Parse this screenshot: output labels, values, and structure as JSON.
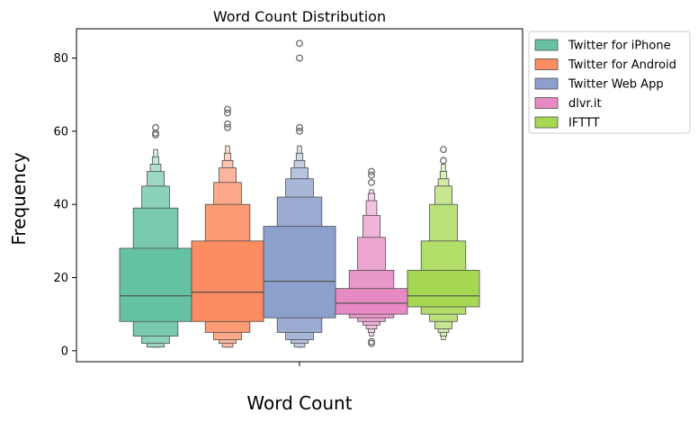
{
  "chart_data": {
    "type": "boxen",
    "title": "Word Count Distribution",
    "xlabel": "Word Count",
    "ylabel": "Frequency",
    "ylim": [
      -3,
      88
    ],
    "yticks": [
      0,
      20,
      40,
      60,
      80
    ],
    "grid": false,
    "legend_position": "outside-top-right",
    "series": [
      {
        "name": "Twitter for iPhone",
        "color": "#66c2a5",
        "median": 15,
        "boxes": [
          [
            8,
            28
          ],
          [
            4,
            39
          ],
          [
            2,
            45
          ],
          [
            1,
            49
          ],
          [
            1,
            51
          ],
          [
            1,
            53
          ],
          [
            1,
            55
          ]
        ],
        "outliers": [
          59,
          59.5,
          61
        ]
      },
      {
        "name": "Twitter for Android",
        "color": "#fc8d62",
        "median": 16,
        "boxes": [
          [
            8,
            30
          ],
          [
            5,
            40
          ],
          [
            3,
            46
          ],
          [
            2,
            50
          ],
          [
            1,
            52
          ],
          [
            1,
            54
          ],
          [
            1,
            56
          ]
        ],
        "outliers": [
          61,
          62,
          65,
          66
        ]
      },
      {
        "name": "Twitter Web App",
        "color": "#8da0cb",
        "median": 19,
        "boxes": [
          [
            9,
            34
          ],
          [
            5,
            42
          ],
          [
            3,
            47
          ],
          [
            2,
            50
          ],
          [
            1,
            52
          ],
          [
            1,
            54
          ],
          [
            1,
            56
          ]
        ],
        "outliers": [
          60,
          61,
          80,
          84
        ]
      },
      {
        "name": "dlvr.it",
        "color": "#e78ac3",
        "median": 13,
        "boxes": [
          [
            10,
            17
          ],
          [
            9,
            22
          ],
          [
            8,
            31
          ],
          [
            7,
            37
          ],
          [
            6,
            41
          ],
          [
            5,
            43
          ],
          [
            4,
            44
          ]
        ],
        "outliers": [
          2,
          2.5,
          46,
          48,
          49
        ]
      },
      {
        "name": "IFTTT",
        "color": "#a6d854",
        "median": 15,
        "boxes": [
          [
            12,
            22
          ],
          [
            10,
            30
          ],
          [
            8,
            40
          ],
          [
            6,
            45
          ],
          [
            5,
            47
          ],
          [
            4,
            49
          ],
          [
            3,
            51
          ]
        ],
        "outliers": [
          52,
          55
        ]
      }
    ]
  }
}
